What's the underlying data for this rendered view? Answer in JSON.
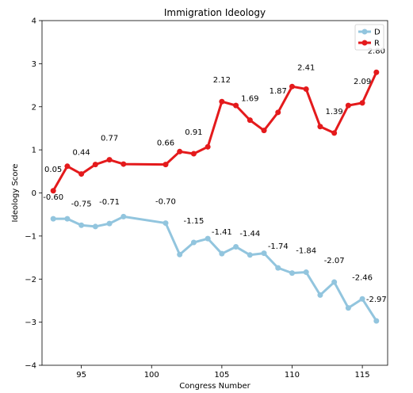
{
  "chart_data": {
    "type": "line",
    "title": "Immigration Ideology",
    "xlabel": "Congress Number",
    "ylabel": "Ideology Score",
    "xlim": [
      92.2,
      116.8
    ],
    "ylim": [
      -4,
      4
    ],
    "xticks": [
      95,
      100,
      105,
      110,
      115
    ],
    "yticks": [
      -4,
      -3,
      -2,
      -1,
      0,
      1,
      2,
      3,
      4
    ],
    "grid": false,
    "legend_position": "top-right",
    "series": [
      {
        "name": "D",
        "color": "#92c5de",
        "points": [
          {
            "x": 93,
            "y": -0.6,
            "label": "-0.60"
          },
          {
            "x": 94,
            "y": -0.6
          },
          {
            "x": 95,
            "y": -0.75,
            "label": "-0.75"
          },
          {
            "x": 96,
            "y": -0.78
          },
          {
            "x": 97,
            "y": -0.71,
            "label": "-0.71"
          },
          {
            "x": 98,
            "y": -0.55
          },
          {
            "x": 101,
            "y": -0.7,
            "label": "-0.70"
          },
          {
            "x": 102,
            "y": -1.43
          },
          {
            "x": 103,
            "y": -1.15,
            "label": "-1.15"
          },
          {
            "x": 104,
            "y": -1.06
          },
          {
            "x": 105,
            "y": -1.41,
            "label": "-1.41"
          },
          {
            "x": 106,
            "y": -1.25
          },
          {
            "x": 107,
            "y": -1.44,
            "label": "-1.44"
          },
          {
            "x": 108,
            "y": -1.4
          },
          {
            "x": 109,
            "y": -1.74,
            "label": "-1.74"
          },
          {
            "x": 110,
            "y": -1.86
          },
          {
            "x": 111,
            "y": -1.84,
            "label": "-1.84"
          },
          {
            "x": 112,
            "y": -2.37
          },
          {
            "x": 113,
            "y": -2.07,
            "label": "-2.07"
          },
          {
            "x": 114,
            "y": -2.67
          },
          {
            "x": 115,
            "y": -2.46,
            "label": "-2.46"
          },
          {
            "x": 116,
            "y": -2.97,
            "label": "-2.97"
          }
        ]
      },
      {
        "name": "R",
        "color": "#e41a1c",
        "points": [
          {
            "x": 93,
            "y": 0.05,
            "label": "0.05"
          },
          {
            "x": 94,
            "y": 0.62
          },
          {
            "x": 95,
            "y": 0.44,
            "label": "0.44"
          },
          {
            "x": 96,
            "y": 0.66
          },
          {
            "x": 97,
            "y": 0.77,
            "label": "0.77"
          },
          {
            "x": 98,
            "y": 0.67
          },
          {
            "x": 101,
            "y": 0.66,
            "label": "0.66"
          },
          {
            "x": 102,
            "y": 0.96
          },
          {
            "x": 103,
            "y": 0.91,
            "label": "0.91"
          },
          {
            "x": 104,
            "y": 1.07
          },
          {
            "x": 105,
            "y": 2.12,
            "label": "2.12"
          },
          {
            "x": 106,
            "y": 2.03
          },
          {
            "x": 107,
            "y": 1.69,
            "label": "1.69"
          },
          {
            "x": 108,
            "y": 1.45
          },
          {
            "x": 109,
            "y": 1.87,
            "label": "1.87"
          },
          {
            "x": 110,
            "y": 2.47
          },
          {
            "x": 111,
            "y": 2.41,
            "label": "2.41"
          },
          {
            "x": 112,
            "y": 1.54
          },
          {
            "x": 113,
            "y": 1.39,
            "label": "1.39"
          },
          {
            "x": 114,
            "y": 2.03
          },
          {
            "x": 115,
            "y": 2.09,
            "label": "2.09"
          },
          {
            "x": 116,
            "y": 2.8,
            "label": "2.80"
          }
        ]
      }
    ]
  }
}
